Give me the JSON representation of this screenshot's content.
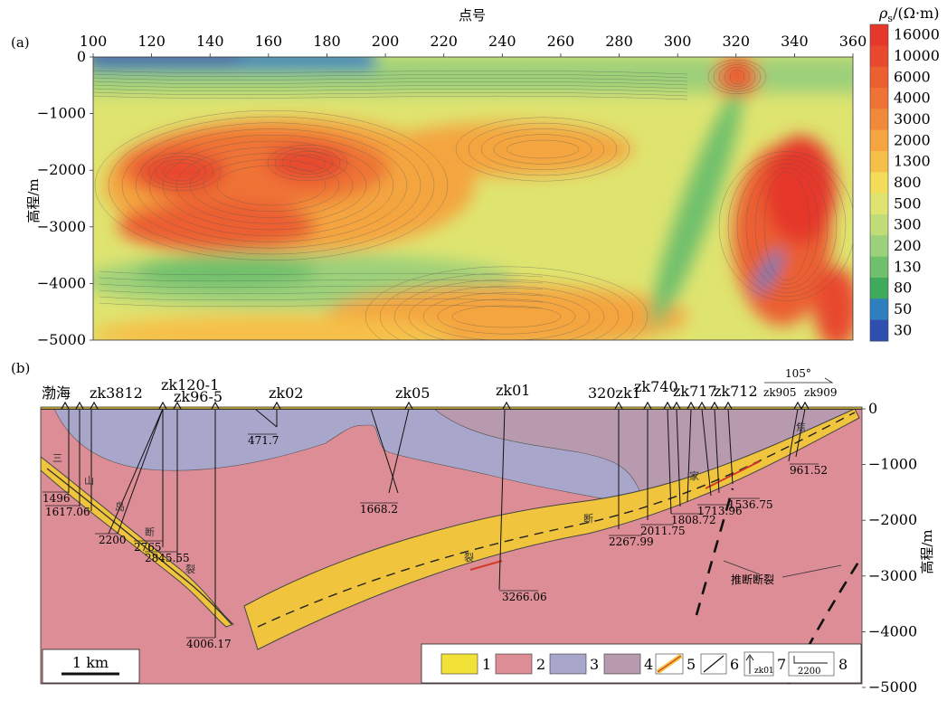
{
  "panel_a": {
    "label": "(a)",
    "xlabel": "点号",
    "ylabel": "高程/m",
    "x_ticks": [
      "100",
      "120",
      "140",
      "160",
      "180",
      "200",
      "220",
      "240",
      "260",
      "280",
      "300",
      "320",
      "340",
      "360"
    ],
    "y_ticks": [
      "0",
      "−1000",
      "−2000",
      "−3000",
      "−4000",
      "−5000"
    ],
    "colorbar": {
      "title_symbol": "ρ",
      "title_sub": "s",
      "title_unit": "/(Ω·m)",
      "labels": [
        "16000",
        "10000",
        "6000",
        "4000",
        "3000",
        "2000",
        "1300",
        "800",
        "500",
        "300",
        "200",
        "130",
        "80",
        "50",
        "30"
      ],
      "colors": [
        "#e5382a",
        "#e8492d",
        "#eb5f31",
        "#ee7335",
        "#f08a3a",
        "#f4a540",
        "#f6c048",
        "#f2dc58",
        "#dfe470",
        "#c0dc78",
        "#9cd07a",
        "#6fc06c",
        "#3faa5c",
        "#2f7fbf",
        "#2f4fb0"
      ]
    }
  },
  "chart_data": [
    {
      "type": "heatmap",
      "title": "",
      "xlabel": "点号",
      "ylabel": "高程/m",
      "xlim": [
        100,
        360
      ],
      "ylim": [
        -5000,
        0
      ],
      "colorbar_label": "ρs/(Ω·m)",
      "colorbar_values": [
        16000,
        10000,
        6000,
        4000,
        3000,
        2000,
        1300,
        800,
        500,
        300,
        200,
        130,
        80,
        50,
        30
      ]
    },
    {
      "type": "table",
      "title": "",
      "ylabel": "高程/m",
      "ylim": [
        -5000,
        0
      ],
      "boreholes": [
        "zk3812",
        "zk120-1",
        "zk96-5",
        "zk02",
        "zk05",
        "zk01",
        "320zk1",
        "zk740",
        "zk717",
        "zk712",
        "zk905",
        "zk909"
      ],
      "depth_labels": [
        "1496",
        "1617.06",
        "2200",
        "2765",
        "2845.55",
        "4006.17",
        "471.7",
        "1668.2",
        "3266.06",
        "2267.99",
        "2011.75",
        "1808.72",
        "1713.96",
        "1536.75",
        "961.52"
      ],
      "scale_bar": "1 km",
      "azimuth": "105°"
    }
  ],
  "panel_b": {
    "label": "(b)",
    "ylabel": "高程/m",
    "y_ticks": [
      "0",
      "−1000",
      "−2000",
      "−3000",
      "−4000",
      "−5000"
    ],
    "sea_label": "渤海",
    "azimuth": "105°",
    "scale_bar": "1 km",
    "boreholes": [
      {
        "name": "zk3812"
      },
      {
        "name": "zk120-1"
      },
      {
        "name": "zk96-5"
      },
      {
        "name": "zk02"
      },
      {
        "name": "zk05"
      },
      {
        "name": "zk01"
      },
      {
        "name": "320zk1"
      },
      {
        "name": "zk740"
      },
      {
        "name": "zk717"
      },
      {
        "name": "zk712"
      },
      {
        "name": "zk905"
      },
      {
        "name": "zk909"
      }
    ],
    "depths": {
      "d1496": "1496",
      "d1617": "1617.06",
      "d2200": "2200",
      "d2765": "2765",
      "d2845": "2845.55",
      "d4006": "4006.17",
      "d471": "471.7",
      "d1668": "1668.2",
      "d3266": "3266.06",
      "d2267": "2267.99",
      "d2011": "2011.75",
      "d1808": "1808.72",
      "d1713": "1713.96",
      "d1536": "1536.75",
      "d961": "961.52"
    },
    "chars": {
      "san": "三",
      "shan": "山",
      "dao": "岛",
      "duan": "断",
      "lie": "裂",
      "duan2": "断",
      "lie2": "裂",
      "jia": "家",
      "jiao": "焦"
    },
    "inferred_fault_label": "推断断裂",
    "legend": [
      "1",
      "2",
      "3",
      "4",
      "5",
      "6",
      "7",
      "8"
    ],
    "legend_icons": {
      "zk01": "zk01",
      "2200": "2200"
    },
    "colors": {
      "yellow": "#f0c43c",
      "pink": "#dc8d95",
      "lavender": "#a9a6cc",
      "mauve": "#b89aae"
    }
  }
}
